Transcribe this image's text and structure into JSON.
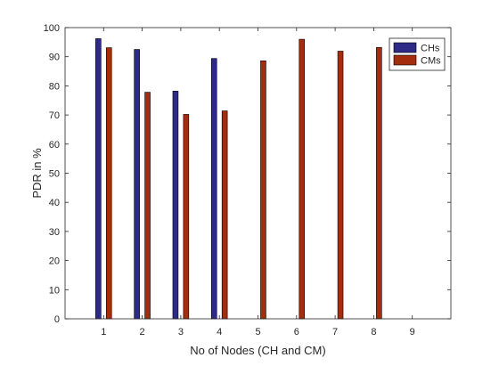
{
  "chart_data": {
    "type": "bar",
    "title": "",
    "xlabel": "No of Nodes (CH and CM)",
    "ylabel": "PDR in %",
    "categories": [
      "1",
      "2",
      "3",
      "4",
      "5",
      "6",
      "7",
      "8",
      "9"
    ],
    "ylim": [
      0,
      100
    ],
    "yticks": [
      0,
      10,
      20,
      30,
      40,
      50,
      60,
      70,
      80,
      90,
      100
    ],
    "grid": false,
    "legend_position": "top-right",
    "series": [
      {
        "name": "CHs",
        "color": "#2e2a88",
        "values": [
          96.2,
          92.5,
          78.2,
          89.4,
          null,
          null,
          null,
          null,
          null
        ]
      },
      {
        "name": "CMs",
        "color": "#a32d0d",
        "values": [
          93.1,
          77.8,
          70.2,
          71.4,
          88.6,
          96.0,
          91.9,
          93.2,
          null
        ]
      }
    ]
  }
}
